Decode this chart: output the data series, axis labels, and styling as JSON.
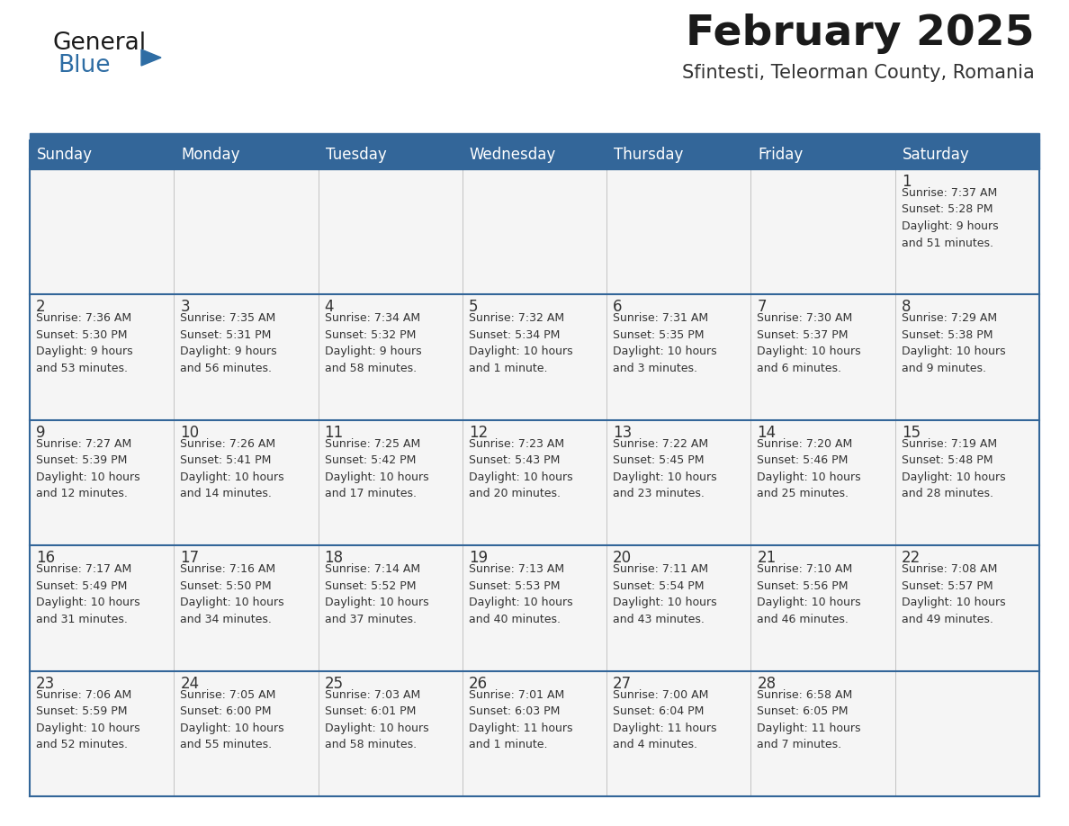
{
  "title": "February 2025",
  "subtitle": "Sfintesti, Teleorman County, Romania",
  "header_bg": "#336699",
  "header_text": "#ffffff",
  "cell_bg_light": "#f5f5f5",
  "cell_bg_white": "#ffffff",
  "border_color": "#336699",
  "row_divider_color": "#336699",
  "day_headers": [
    "Sunday",
    "Monday",
    "Tuesday",
    "Wednesday",
    "Thursday",
    "Friday",
    "Saturday"
  ],
  "title_color": "#1a1a1a",
  "subtitle_color": "#333333",
  "data_color": "#333333",
  "day_num_color": "#333333",
  "logo_general_color": "#1a1a1a",
  "logo_blue_color": "#2e6da4",
  "logo_triangle_color": "#2e6da4",
  "weeks": [
    [
      {
        "day": "",
        "info": ""
      },
      {
        "day": "",
        "info": ""
      },
      {
        "day": "",
        "info": ""
      },
      {
        "day": "",
        "info": ""
      },
      {
        "day": "",
        "info": ""
      },
      {
        "day": "",
        "info": ""
      },
      {
        "day": "1",
        "info": "Sunrise: 7:37 AM\nSunset: 5:28 PM\nDaylight: 9 hours\nand 51 minutes."
      }
    ],
    [
      {
        "day": "2",
        "info": "Sunrise: 7:36 AM\nSunset: 5:30 PM\nDaylight: 9 hours\nand 53 minutes."
      },
      {
        "day": "3",
        "info": "Sunrise: 7:35 AM\nSunset: 5:31 PM\nDaylight: 9 hours\nand 56 minutes."
      },
      {
        "day": "4",
        "info": "Sunrise: 7:34 AM\nSunset: 5:32 PM\nDaylight: 9 hours\nand 58 minutes."
      },
      {
        "day": "5",
        "info": "Sunrise: 7:32 AM\nSunset: 5:34 PM\nDaylight: 10 hours\nand 1 minute."
      },
      {
        "day": "6",
        "info": "Sunrise: 7:31 AM\nSunset: 5:35 PM\nDaylight: 10 hours\nand 3 minutes."
      },
      {
        "day": "7",
        "info": "Sunrise: 7:30 AM\nSunset: 5:37 PM\nDaylight: 10 hours\nand 6 minutes."
      },
      {
        "day": "8",
        "info": "Sunrise: 7:29 AM\nSunset: 5:38 PM\nDaylight: 10 hours\nand 9 minutes."
      }
    ],
    [
      {
        "day": "9",
        "info": "Sunrise: 7:27 AM\nSunset: 5:39 PM\nDaylight: 10 hours\nand 12 minutes."
      },
      {
        "day": "10",
        "info": "Sunrise: 7:26 AM\nSunset: 5:41 PM\nDaylight: 10 hours\nand 14 minutes."
      },
      {
        "day": "11",
        "info": "Sunrise: 7:25 AM\nSunset: 5:42 PM\nDaylight: 10 hours\nand 17 minutes."
      },
      {
        "day": "12",
        "info": "Sunrise: 7:23 AM\nSunset: 5:43 PM\nDaylight: 10 hours\nand 20 minutes."
      },
      {
        "day": "13",
        "info": "Sunrise: 7:22 AM\nSunset: 5:45 PM\nDaylight: 10 hours\nand 23 minutes."
      },
      {
        "day": "14",
        "info": "Sunrise: 7:20 AM\nSunset: 5:46 PM\nDaylight: 10 hours\nand 25 minutes."
      },
      {
        "day": "15",
        "info": "Sunrise: 7:19 AM\nSunset: 5:48 PM\nDaylight: 10 hours\nand 28 minutes."
      }
    ],
    [
      {
        "day": "16",
        "info": "Sunrise: 7:17 AM\nSunset: 5:49 PM\nDaylight: 10 hours\nand 31 minutes."
      },
      {
        "day": "17",
        "info": "Sunrise: 7:16 AM\nSunset: 5:50 PM\nDaylight: 10 hours\nand 34 minutes."
      },
      {
        "day": "18",
        "info": "Sunrise: 7:14 AM\nSunset: 5:52 PM\nDaylight: 10 hours\nand 37 minutes."
      },
      {
        "day": "19",
        "info": "Sunrise: 7:13 AM\nSunset: 5:53 PM\nDaylight: 10 hours\nand 40 minutes."
      },
      {
        "day": "20",
        "info": "Sunrise: 7:11 AM\nSunset: 5:54 PM\nDaylight: 10 hours\nand 43 minutes."
      },
      {
        "day": "21",
        "info": "Sunrise: 7:10 AM\nSunset: 5:56 PM\nDaylight: 10 hours\nand 46 minutes."
      },
      {
        "day": "22",
        "info": "Sunrise: 7:08 AM\nSunset: 5:57 PM\nDaylight: 10 hours\nand 49 minutes."
      }
    ],
    [
      {
        "day": "23",
        "info": "Sunrise: 7:06 AM\nSunset: 5:59 PM\nDaylight: 10 hours\nand 52 minutes."
      },
      {
        "day": "24",
        "info": "Sunrise: 7:05 AM\nSunset: 6:00 PM\nDaylight: 10 hours\nand 55 minutes."
      },
      {
        "day": "25",
        "info": "Sunrise: 7:03 AM\nSunset: 6:01 PM\nDaylight: 10 hours\nand 58 minutes."
      },
      {
        "day": "26",
        "info": "Sunrise: 7:01 AM\nSunset: 6:03 PM\nDaylight: 11 hours\nand 1 minute."
      },
      {
        "day": "27",
        "info": "Sunrise: 7:00 AM\nSunset: 6:04 PM\nDaylight: 11 hours\nand 4 minutes."
      },
      {
        "day": "28",
        "info": "Sunrise: 6:58 AM\nSunset: 6:05 PM\nDaylight: 11 hours\nand 7 minutes."
      },
      {
        "day": "",
        "info": ""
      }
    ]
  ]
}
